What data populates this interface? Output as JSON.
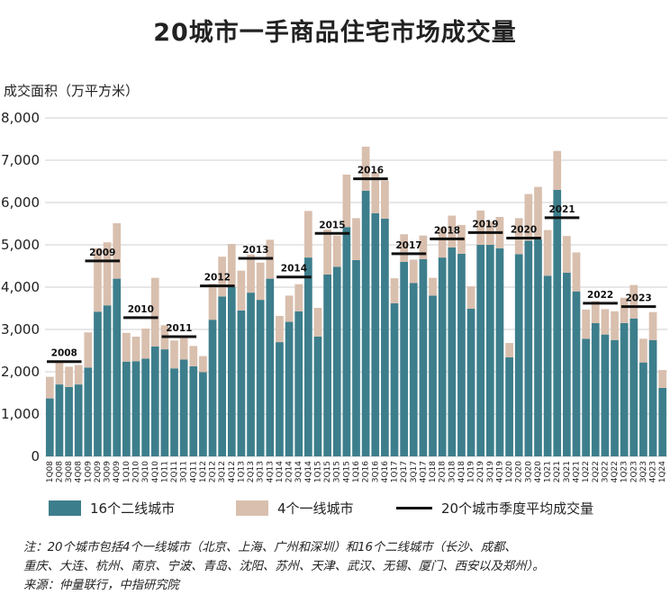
{
  "chart_data": {
    "type": "bar",
    "stacked": true,
    "title": "20城市一手商品住宅市场成交量",
    "ylabel": "成交面积（万平方米）",
    "ylim": [
      0,
      8000
    ],
    "yticks": [
      0,
      1000,
      2000,
      3000,
      4000,
      5000,
      6000,
      7000,
      8000
    ],
    "ytick_labels": [
      "0",
      "1,000",
      "2,000",
      "3,000",
      "4,000",
      "5,000",
      "6,000",
      "7,000",
      "8,000"
    ],
    "categories": [
      "1Q08",
      "2Q08",
      "3Q08",
      "4Q08",
      "1Q09",
      "2Q09",
      "3Q09",
      "4Q09",
      "1Q10",
      "2Q10",
      "3Q10",
      "4Q10",
      "1Q11",
      "2Q11",
      "3Q11",
      "4Q11",
      "1Q12",
      "2Q12",
      "3Q12",
      "4Q12",
      "1Q13",
      "2Q13",
      "3Q13",
      "4Q13",
      "1Q14",
      "2Q14",
      "3Q14",
      "4Q14",
      "1Q15",
      "2Q15",
      "3Q15",
      "4Q15",
      "1Q16",
      "2Q16",
      "3Q16",
      "4Q16",
      "1Q17",
      "2Q17",
      "3Q17",
      "4Q17",
      "1Q18",
      "2Q18",
      "3Q18",
      "4Q18",
      "1Q19",
      "2Q19",
      "3Q19",
      "4Q19",
      "1Q20",
      "2Q20",
      "3Q20",
      "4Q20",
      "1Q21",
      "2Q21",
      "3Q21",
      "4Q21",
      "1Q22",
      "2Q22",
      "3Q22",
      "4Q22",
      "1Q23",
      "2Q23",
      "3Q23",
      "4Q23",
      "1Q24"
    ],
    "series": [
      {
        "name": "16个二线城市",
        "color": "#3d7e8c",
        "values": [
          1370,
          1700,
          1640,
          1700,
          2100,
          3420,
          3570,
          4200,
          2240,
          2250,
          2310,
          2600,
          2530,
          2080,
          2290,
          2130,
          1990,
          3230,
          3780,
          4000,
          3450,
          3870,
          3700,
          4200,
          2700,
          3180,
          3430,
          4700,
          2830,
          4300,
          4480,
          5420,
          4640,
          6280,
          5750,
          5620,
          3620,
          4600,
          4100,
          4660,
          3800,
          4700,
          4940,
          4790,
          3490,
          5000,
          5000,
          4920,
          2340,
          4780,
          5100,
          5130,
          4270,
          6300,
          4340,
          3900,
          2780,
          3150,
          2880,
          2750,
          3150,
          3260,
          2220,
          2750,
          1620
        ]
      },
      {
        "name": "4个一线城市",
        "color": "#d9bfae",
        "values": [
          510,
          550,
          480,
          460,
          830,
          1500,
          1490,
          1310,
          680,
          580,
          710,
          1620,
          570,
          660,
          560,
          480,
          380,
          850,
          940,
          1020,
          940,
          900,
          880,
          920,
          620,
          620,
          640,
          1100,
          680,
          1060,
          740,
          1240,
          990,
          1040,
          960,
          900,
          590,
          650,
          550,
          560,
          420,
          700,
          750,
          680,
          530,
          810,
          550,
          740,
          340,
          850,
          1100,
          1240,
          1080,
          920,
          870,
          920,
          690,
          520,
          600,
          680,
          600,
          790,
          560,
          660,
          420
        ]
      }
    ],
    "averages": [
      {
        "label": "2008",
        "value": 2240
      },
      {
        "label": "2009",
        "value": 4620
      },
      {
        "label": "2010",
        "value": 3280
      },
      {
        "label": "2011",
        "value": 2830
      },
      {
        "label": "2012",
        "value": 4030
      },
      {
        "label": "2013",
        "value": 4680
      },
      {
        "label": "2014",
        "value": 4240
      },
      {
        "label": "2015",
        "value": 5270
      },
      {
        "label": "2016",
        "value": 6560
      },
      {
        "label": "2017",
        "value": 4790
      },
      {
        "label": "2018",
        "value": 5140
      },
      {
        "label": "2019",
        "value": 5290
      },
      {
        "label": "2020",
        "value": 5160
      },
      {
        "label": "2021",
        "value": 5640
      },
      {
        "label": "2022",
        "value": 3620
      },
      {
        "label": "2023",
        "value": 3540
      }
    ],
    "average_series_name": "20个城市季度平均成交量"
  },
  "note_lines": [
    "注：20个城市包括4个一线城市（北京、上海、广州和深圳）和16个二线城市（长沙、成都、",
    "重庆、大连、杭州、南京、宁波、青岛、沈阳、苏州、天津、武汉、无锡、厦门、西安以及郑州）。",
    "来源：仲量联行，中指研究院"
  ]
}
